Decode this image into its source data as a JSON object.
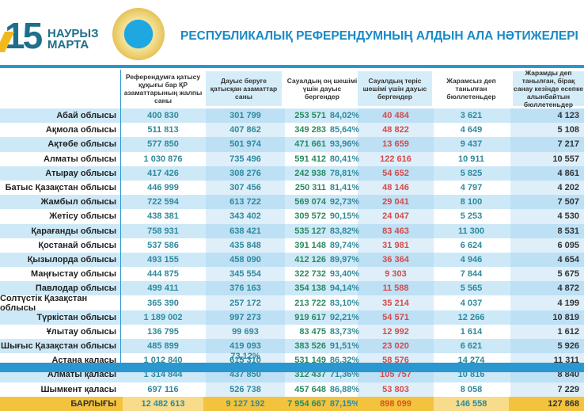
{
  "header": {
    "logo_number": "15",
    "logo_line1": "НАУРЫЗ",
    "logo_line2": "МАРТА",
    "title": "РЕСПУБЛИКАЛЫҚ РЕФЕРЕНДУМНЫҢ АЛДЫН АЛА НӘТИЖЕЛЕРІ"
  },
  "columns": [
    "Референдумға қатысу құқығы бар ҚР азаматтарының жалпы саны",
    "Дауыс беруге қатысқан азаматтар саны",
    "Сауалдың оң шешімі үшін дауыс бергендер",
    "Сауалдың теріс шешімі үшін дауыс бергендер",
    "Жарамсыз деп танылған бюллетеньдер",
    "Жарамды деп танылған, бірақ санау кезінде есепке алынбайтын бюллетеньдер"
  ],
  "rows": [
    [
      "Абай облысы",
      "400 830",
      "301 799",
      "253 571",
      "84,02%",
      "40 484",
      "3 621",
      "4 123"
    ],
    [
      "Ақмола облысы",
      "511 813",
      "407 862",
      "349 283",
      "85,64%",
      "48 822",
      "4 649",
      "5 108"
    ],
    [
      "Ақтөбе облысы",
      "577 850",
      "501 974",
      "471 661",
      "93,96%",
      "13 659",
      "9 437",
      "7 217"
    ],
    [
      "Алматы облысы",
      "1 030 876",
      "735 496",
      "591 412",
      "80,41%",
      "122 616",
      "10 911",
      "10 557"
    ],
    [
      "Атырау облысы",
      "417 426",
      "308 276",
      "242 938",
      "78,81%",
      "54 652",
      "5 825",
      "4 861"
    ],
    [
      "Батыс Қазақстан облысы",
      "446 999",
      "307 456",
      "250 311",
      "81,41%",
      "48 146",
      "4 797",
      "4 202"
    ],
    [
      "Жамбыл облысы",
      "722 594",
      "613 722",
      "569 074",
      "92,73%",
      "29 041",
      "8 100",
      "7 507"
    ],
    [
      "Жетісу облысы",
      "438 381",
      "343 402",
      "309 572",
      "90,15%",
      "24 047",
      "5 253",
      "4 530"
    ],
    [
      "Қарағанды облысы",
      "758 931",
      "638 421",
      "535 127",
      "83,82%",
      "83 463",
      "11 300",
      "8 531"
    ],
    [
      "Қостанай облысы",
      "537 586",
      "435 848",
      "391 148",
      "89,74%",
      "31 981",
      "6 624",
      "6 095"
    ],
    [
      "Қызылорда облысы",
      "493 155",
      "458 090",
      "412 126",
      "89,97%",
      "36 364",
      "4 946",
      "4 654"
    ],
    [
      "Маңғыстау облысы",
      "444 875",
      "345 554",
      "322 732",
      "93,40%",
      "9 303",
      "7 844",
      "5 675"
    ],
    [
      "Павлодар облысы",
      "499 411",
      "376 163",
      "354 138",
      "94,14%",
      "11 588",
      "5 565",
      "4 872"
    ],
    [
      "Солтүстік Қазақстан облысы",
      "365 390",
      "257 172",
      "213 722",
      "83,10%",
      "35 214",
      "4 037",
      "4 199"
    ],
    [
      "Түркістан облысы",
      "1 189 002",
      "997 273",
      "919 617",
      "92,21%",
      "54 571",
      "12 266",
      "10 819"
    ],
    [
      "Ұлытау облысы",
      "136 795",
      "99 693",
      "83 475",
      "83,73%",
      "12 992",
      "1 614",
      "1 612"
    ],
    [
      "Шығыс Қазақстан облысы",
      "485 899",
      "419 093",
      "383 526",
      "91,51%",
      "23 020",
      "6 621",
      "5 926"
    ],
    [
      "Астана қаласы",
      "1 012 840",
      "615 310",
      "531 149",
      "86,32%",
      "58 576",
      "14 274",
      "11 311"
    ],
    [
      "Алматы қаласы",
      "1 314 844",
      "437 850",
      "312 437",
      "71,36%",
      "105 757",
      "10 816",
      "8 840"
    ],
    [
      "Шымкент қаласы",
      "697 116",
      "526 738",
      "457 648",
      "86,88%",
      "53 803",
      "8 058",
      "7 229"
    ]
  ],
  "total": [
    "БАРЛЫҒЫ",
    "12 482 613",
    "9 127 192",
    "7 954 667",
    "87,15%",
    "898 099",
    "146 558",
    "127 868"
  ],
  "turnout_pct": "73,12%",
  "colors": {
    "accent": "#2a97d1",
    "total": "#f3c33e",
    "negative": "#d44b4b",
    "positive": "#2a8a63"
  }
}
